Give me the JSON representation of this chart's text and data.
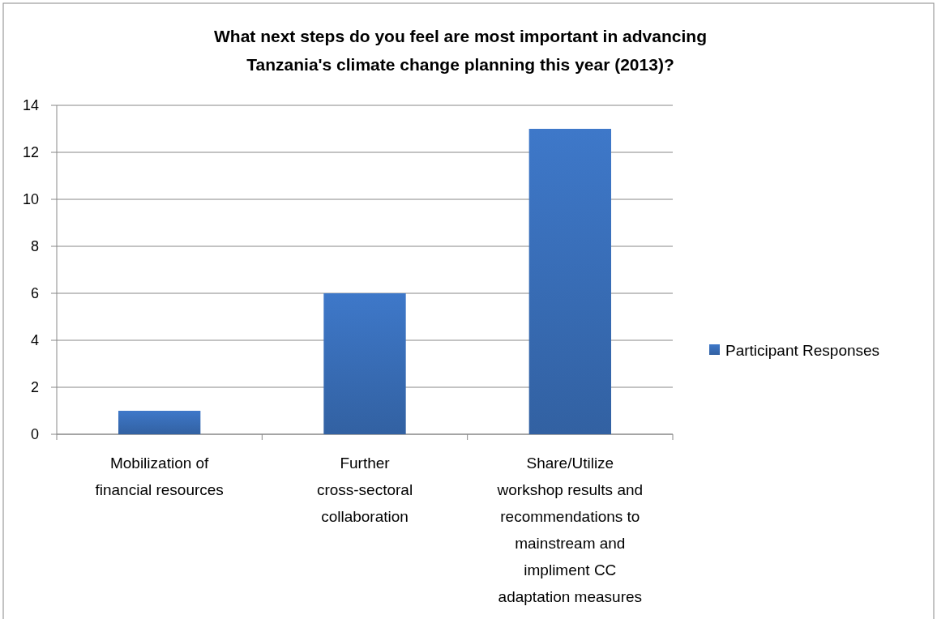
{
  "chart_data": {
    "type": "bar",
    "title": "What next steps do you feel are most important in advancing Tanzania's climate change planning this year (2013)?",
    "categories": [
      "Mobilization of financial resources",
      "Further cross-sectoral collaboration",
      "Share/Utilize workshop results and recommendations to mainstream and impliment CC adaptation measures"
    ],
    "series": [
      {
        "name": "Participant Responses",
        "color": "#3a70bb",
        "values": [
          1,
          6,
          13
        ]
      }
    ],
    "ylim": [
      0,
      14
    ],
    "yticks": [
      0,
      2,
      4,
      6,
      8,
      10,
      12,
      14
    ],
    "grid": "y",
    "legend": "right"
  }
}
